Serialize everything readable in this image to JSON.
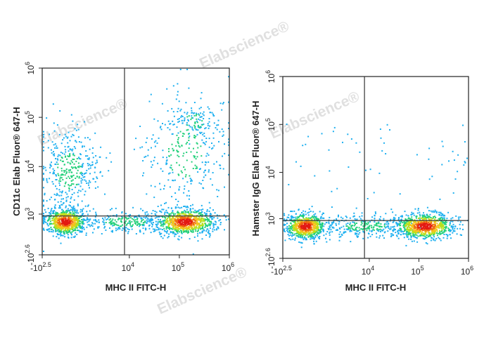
{
  "watermark": {
    "text": "Elabscience",
    "registered": "®"
  },
  "chart_data": [
    {
      "type": "scatter",
      "xlabel": "MHC II FITC-H",
      "ylabel": "CD11c Elab Fluor® 647-H",
      "xlim": [
        "-10^2.5",
        "10^6"
      ],
      "ylim": [
        "-10^2.6",
        "10^6"
      ],
      "x_ticks": [
        {
          "base": "-10",
          "exp": "2.5",
          "value": -316
        },
        {
          "base": "10",
          "exp": "4",
          "value": 10000
        },
        {
          "base": "10",
          "exp": "5",
          "value": 100000
        },
        {
          "base": "10",
          "exp": "6",
          "value": 1000000
        }
      ],
      "y_ticks": [
        {
          "base": "-10",
          "exp": "2.6",
          "value": -398
        },
        {
          "base": "10",
          "exp": "3",
          "value": 1000
        },
        {
          "base": "10",
          "exp": "4",
          "value": 10000
        },
        {
          "base": "10",
          "exp": "5",
          "value": 100000
        },
        {
          "base": "10",
          "exp": "6",
          "value": 1000000
        }
      ],
      "gate_lines": {
        "x": 8000,
        "y": 900
      },
      "populations": [
        {
          "x_center": 0,
          "y_center": 0,
          "density": "high"
        },
        {
          "x_center": 90000,
          "y_center": 0,
          "density": "high"
        },
        {
          "x_center": 0,
          "y_center": 3000,
          "density": "medium"
        },
        {
          "x_center": 150000,
          "y_center": 30000,
          "density": "low"
        }
      ]
    },
    {
      "type": "scatter",
      "xlabel": "MHC II FITC-H",
      "ylabel": "Hamster IgG Elab Fluor® 647-H",
      "xlim": [
        "-10^2.5",
        "10^6"
      ],
      "ylim": [
        "-10^2.6",
        "10^6"
      ],
      "x_ticks": [
        {
          "base": "-10",
          "exp": "2.5",
          "value": -316
        },
        {
          "base": "10",
          "exp": "4",
          "value": 10000
        },
        {
          "base": "10",
          "exp": "5",
          "value": 100000
        },
        {
          "base": "10",
          "exp": "6",
          "value": 1000000
        }
      ],
      "y_ticks": [
        {
          "base": "-10",
          "exp": "2.6",
          "value": -398
        },
        {
          "base": "10",
          "exp": "3",
          "value": 1000
        },
        {
          "base": "10",
          "exp": "4",
          "value": 10000
        },
        {
          "base": "10",
          "exp": "5",
          "value": 100000
        },
        {
          "base": "10",
          "exp": "6",
          "value": 1000000
        }
      ],
      "gate_lines": {
        "x": 8000,
        "y": 900
      },
      "populations": [
        {
          "x_center": 0,
          "y_center": 0,
          "density": "high"
        },
        {
          "x_center": 90000,
          "y_center": 0,
          "density": "high"
        }
      ]
    }
  ]
}
